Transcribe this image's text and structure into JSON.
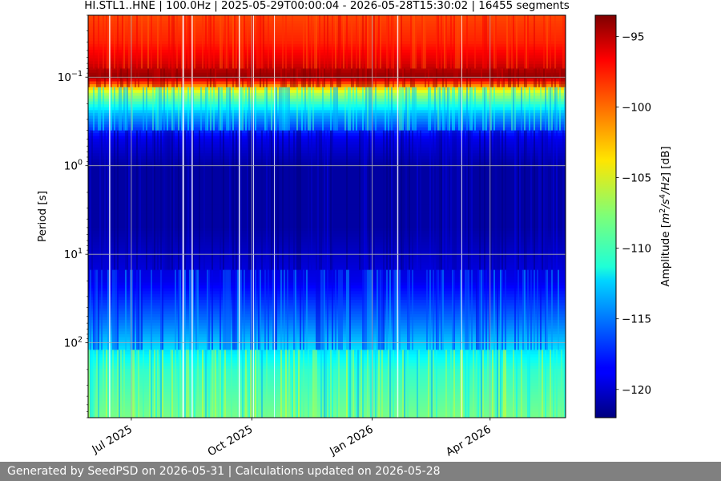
{
  "chart_data": {
    "type": "heatmap",
    "title": "HI.STL1..HNE | 100.0Hz | 2025-05-29T00:00:04 - 2026-05-28T15:30:02 | 16455 segments",
    "xlabel": "",
    "ylabel": "Period [s]",
    "x_range": [
      "2025-05-29T00:00:04",
      "2026-05-28T15:30:02"
    ],
    "x_ticks": [
      {
        "date": "2025-07-01",
        "label": "Jul 2025"
      },
      {
        "date": "2025-10-01",
        "label": "Oct 2025"
      },
      {
        "date": "2026-01-01",
        "label": "Jan 2026"
      },
      {
        "date": "2026-04-01",
        "label": "Apr 2026"
      }
    ],
    "y_scale": "log",
    "y_inverted": true,
    "y_range": [
      0.02,
      700
    ],
    "y_ticks": [
      {
        "value": 0.1,
        "base": "10",
        "exp": "−1"
      },
      {
        "value": 1,
        "base": "10",
        "exp": "0"
      },
      {
        "value": 10,
        "base": "10",
        "exp": "1"
      },
      {
        "value": 100,
        "base": "10",
        "exp": "2"
      }
    ],
    "grid": true,
    "colormap": "jet",
    "colorbar": {
      "label": "Amplitude [m²/s⁴/Hz] [dB]",
      "range": [
        -122,
        -93.5
      ],
      "ticks": [
        -95,
        -100,
        -105,
        -110,
        -115,
        -120
      ]
    },
    "amplitude_profile": [
      {
        "period": 0.02,
        "db": -99
      },
      {
        "period": 0.04,
        "db": -98
      },
      {
        "period": 0.07,
        "db": -96
      },
      {
        "period": 0.1,
        "db": -94
      },
      {
        "period": 0.12,
        "db": -100
      },
      {
        "period": 0.15,
        "db": -106
      },
      {
        "period": 0.25,
        "db": -113
      },
      {
        "period": 0.5,
        "db": -119
      },
      {
        "period": 1,
        "db": -121
      },
      {
        "period": 5,
        "db": -121
      },
      {
        "period": 20,
        "db": -119
      },
      {
        "period": 60,
        "db": -115
      },
      {
        "period": 200,
        "db": -110
      },
      {
        "period": 700,
        "db": -108
      }
    ]
  },
  "footer": {
    "text": "Generated by SeedPSD on 2026-05-31 | Calculations updated on 2026-05-28"
  }
}
